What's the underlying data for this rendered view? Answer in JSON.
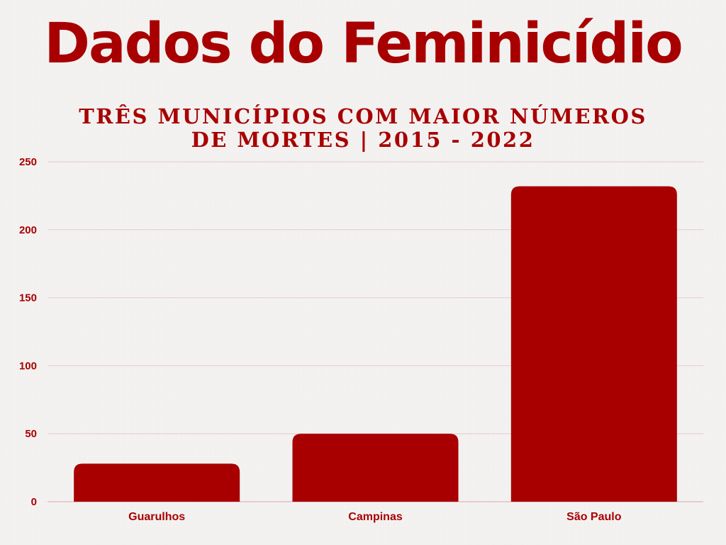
{
  "colors": {
    "accent": "#a80000",
    "gridline": "#e6c9c9",
    "background": "#f4f3f2"
  },
  "title": "Dados do Feminicídio",
  "subtitle": "TRÊS MUNICÍPIOS COM MAIOR NÚMEROS DE MORTES | 2015 - 2022",
  "chart_data": {
    "type": "bar",
    "categories": [
      "Guarulhos",
      "Campinas",
      "São Paulo"
    ],
    "values": [
      28,
      50,
      232
    ],
    "ylim": [
      0,
      250
    ],
    "yticks": [
      0,
      50,
      100,
      150,
      200,
      250
    ],
    "grid": true,
    "legend": "none",
    "xlabel": "",
    "ylabel": ""
  }
}
